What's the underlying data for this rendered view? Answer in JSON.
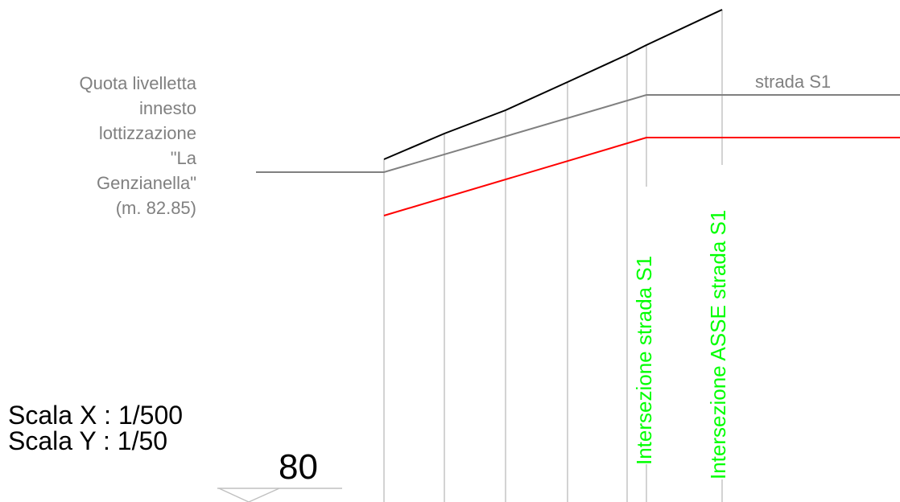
{
  "annotation": {
    "lines": [
      "Quota livelletta",
      "innesto",
      "lottizzazione",
      "\"La",
      "Genzianella\"",
      "(m. 82.85)"
    ]
  },
  "road_label": "strada S1",
  "scale": {
    "x": "Scala X : 1/500",
    "y": "Scala Y : 1/50"
  },
  "datum": "80",
  "vertical_labels": {
    "intersection": "Intersezione strada S1",
    "axis": "Intersezione ASSE strada S1"
  },
  "colors": {
    "terrain_line": "#000000",
    "design_line": "#808080",
    "red_line": "#ff0000",
    "label_gray": "#808080",
    "label_green": "#00ff00",
    "station_line": "#c0c0c0"
  }
}
